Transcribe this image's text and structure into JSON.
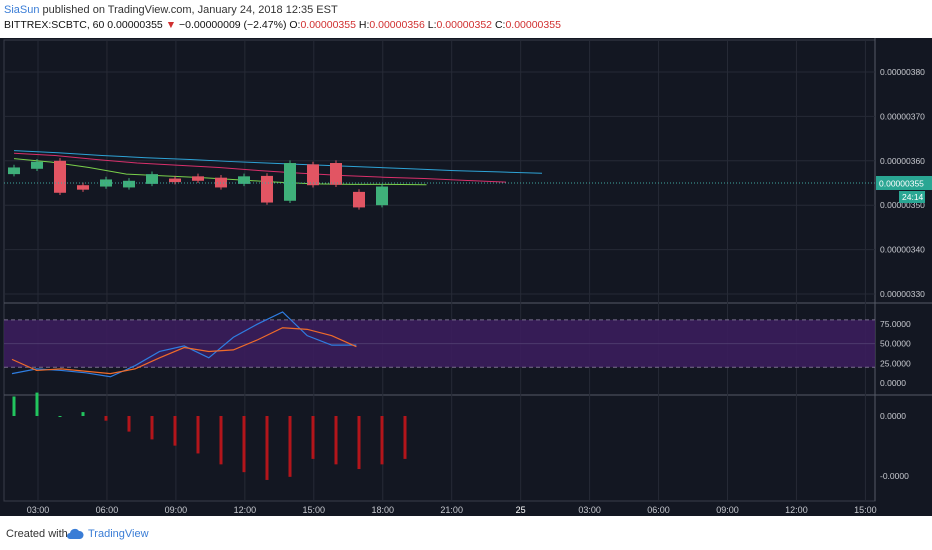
{
  "header": {
    "author": "SiaSun",
    "published": "published on TradingView.com, January 24, 2018 12:35 EST",
    "symbol": "BITTREX:SCBTC, 60",
    "last": "0.00000355",
    "change": "−0.00000009 (−2.47%)",
    "o_label": "O:",
    "o_value": "0.00000355",
    "h_label": "H:",
    "h_value": "0.00000356",
    "l_label": "L:",
    "l_value": "0.00000352",
    "c_label": "C:",
    "c_value": "0.00000355"
  },
  "footer": {
    "created": "Created with",
    "brand": "TradingView"
  },
  "colors": {
    "bg": "#131722",
    "up": "#3fb07a",
    "down": "#e25563",
    "stoch_k": "#2f7de1",
    "stoch_d": "#ef6b2a",
    "band": "#3b1d5c",
    "hist_up": "#22c55e",
    "hist_down": "#b3151b",
    "ma_blue": "#2ea3d6",
    "ma_pink": "#d8306b",
    "ma_green": "#7ad04b"
  },
  "chart_data": [
    {
      "type": "candlestick",
      "title": "",
      "price_axis": [
        "0.00000380",
        "0.00000370",
        "0.00000360",
        "0.00000350",
        "0.00000340",
        "0.00000330"
      ],
      "last_price_tag": "0.00000355",
      "countdown_tag": "24:14",
      "x_ticks": [
        "03:00",
        "06:00",
        "09:00",
        "12:00",
        "15:00",
        "18:00",
        "21:00",
        "25",
        "03:00",
        "06:00",
        "09:00",
        "12:00",
        "15:00"
      ],
      "candles": [
        {
          "o": 3.57,
          "c": 3.585
        },
        {
          "o": 3.582,
          "c": 3.598
        },
        {
          "o": 3.6,
          "c": 3.528
        },
        {
          "o": 3.545,
          "c": 3.535
        },
        {
          "o": 3.542,
          "c": 3.558
        },
        {
          "o": 3.54,
          "c": 3.555
        },
        {
          "o": 3.548,
          "c": 3.57
        },
        {
          "o": 3.56,
          "c": 3.552
        },
        {
          "o": 3.565,
          "c": 3.555
        },
        {
          "o": 3.562,
          "c": 3.54
        },
        {
          "o": 3.548,
          "c": 3.565
        },
        {
          "o": 3.566,
          "c": 3.506
        },
        {
          "o": 3.51,
          "c": 3.595
        },
        {
          "o": 3.592,
          "c": 3.545
        },
        {
          "o": 3.595,
          "c": 3.546
        },
        {
          "o": 3.53,
          "c": 3.495
        },
        {
          "o": 3.5,
          "c": 3.542
        }
      ],
      "ma_blue": [
        3.623,
        3.618,
        3.612,
        3.607,
        3.603,
        3.598,
        3.594,
        3.59,
        3.586,
        3.582,
        3.578,
        3.575,
        3.572
      ],
      "ma_pink": [
        3.617,
        3.612,
        3.603,
        3.595,
        3.59,
        3.585,
        3.578,
        3.572,
        3.567,
        3.563,
        3.56,
        3.556,
        3.552
      ],
      "ma_green": [
        3.605,
        3.597,
        3.585,
        3.57,
        3.566,
        3.562,
        3.557,
        3.552,
        3.548,
        3.547,
        3.547,
        3.546
      ]
    },
    {
      "type": "line",
      "title": "",
      "axis": [
        "75.0000",
        "50.0000",
        "25.0000",
        "0.0000"
      ],
      "band": [
        20,
        80
      ],
      "series": [
        {
          "values": [
            12,
            18,
            16,
            13,
            8,
            22,
            40,
            47,
            32,
            58,
            75,
            90,
            60,
            48,
            48
          ]
        },
        {
          "values": [
            30,
            16,
            18,
            15,
            12,
            18,
            32,
            45,
            40,
            42,
            55,
            70,
            68,
            60,
            46
          ]
        }
      ]
    },
    {
      "type": "bar",
      "title": "",
      "axis": [
        "0.0000",
        "-0.0000"
      ],
      "values": [
        0.25,
        0.3,
        0.0,
        0.05,
        -0.06,
        -0.2,
        -0.3,
        -0.38,
        -0.48,
        -0.62,
        -0.72,
        -0.82,
        -0.78,
        -0.55,
        -0.62,
        -0.68,
        -0.62,
        -0.55
      ]
    }
  ]
}
